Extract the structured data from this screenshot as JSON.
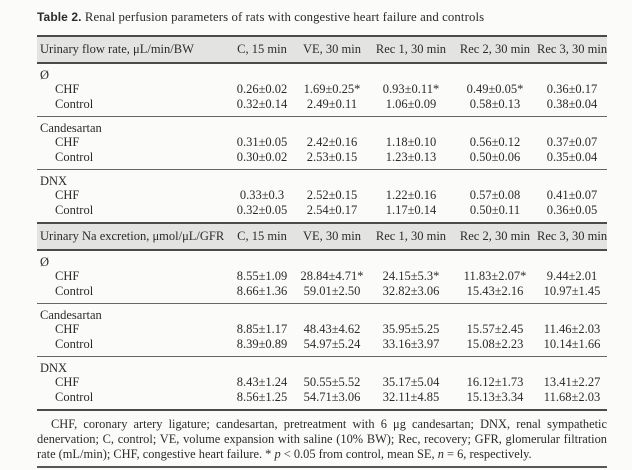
{
  "title": {
    "bold": "Table 2.",
    "rest": " Renal perfusion parameters of rats with congestive heart failure and controls"
  },
  "tables": [
    {
      "header": {
        "param": "Urinary flow rate, μL/min/BW",
        "cols": [
          "C, 15 min",
          "VE, 30 min",
          "Rec 1, 30 min",
          "Rec 2, 30 min",
          "Rec 3, 30 min"
        ]
      },
      "sections": [
        {
          "name": "Ø",
          "rows": [
            {
              "label": "CHF",
              "values": [
                "0.26±0.02",
                "1.69±0.25*",
                "0.93±0.11*",
                "0.49±0.05*",
                "0.36±0.17"
              ]
            },
            {
              "label": "Control",
              "values": [
                "0.32±0.14",
                "2.49±0.11",
                "1.06±0.09",
                "0.58±0.13",
                "0.38±0.04"
              ]
            }
          ]
        },
        {
          "name": "Candesartan",
          "rows": [
            {
              "label": "CHF",
              "values": [
                "0.31±0.05",
                "2.42±0.16",
                "1.18±0.10",
                "0.56±0.12",
                "0.37±0.07"
              ]
            },
            {
              "label": "Control",
              "values": [
                "0.30±0.02",
                "2.53±0.15",
                "1.23±0.13",
                "0.50±0.06",
                "0.35±0.04"
              ]
            }
          ]
        },
        {
          "name": "DNX",
          "rows": [
            {
              "label": "CHF",
              "values": [
                "0.33±0.3",
                "2.52±0.15",
                "1.22±0.16",
                "0.57±0.08",
                "0.41±0.07"
              ]
            },
            {
              "label": "Control",
              "values": [
                "0.32±0.05",
                "2.54±0.17",
                "1.17±0.14",
                "0.50±0.11",
                "0.36±0.05"
              ]
            }
          ]
        }
      ]
    },
    {
      "header": {
        "param": "Urinary Na excretion, μmol/μL/GFR",
        "cols": [
          "C, 15 min",
          "VE, 30 min",
          "Rec 1, 30 min",
          "Rec 2, 30 min",
          "Rec 3, 30 min"
        ]
      },
      "sections": [
        {
          "name": "Ø",
          "rows": [
            {
              "label": "CHF",
              "values": [
                "8.55±1.09",
                "28.84±4.71*",
                "24.15±5.3*",
                "11.83±2.07*",
                "9.44±2.01"
              ]
            },
            {
              "label": "Control",
              "values": [
                "8.66±1.36",
                "59.01±2.50",
                "32.82±3.06",
                "15.43±2.16",
                "10.97±1.45"
              ]
            }
          ]
        },
        {
          "name": "Candesartan",
          "rows": [
            {
              "label": "CHF",
              "values": [
                "8.85±1.17",
                "48.43±4.62",
                "35.95±5.25",
                "15.57±2.45",
                "11.46±2.03"
              ]
            },
            {
              "label": "Control",
              "values": [
                "8.39±0.89",
                "54.97±5.24",
                "33.16±3.97",
                "15.08±2.23",
                "10.14±1.66"
              ]
            }
          ]
        },
        {
          "name": "DNX",
          "rows": [
            {
              "label": "CHF",
              "values": [
                "8.43±1.24",
                "50.55±5.52",
                "35.17±5.04",
                "16.12±1.73",
                "13.41±2.27"
              ]
            },
            {
              "label": "Control",
              "values": [
                "8.56±1.25",
                "54.71±3.06",
                "32.11±4.85",
                "15.13±3.34",
                "11.68±2.03"
              ]
            }
          ]
        }
      ]
    }
  ],
  "footnote": {
    "part1": "CHF, coronary artery ligature; candesartan, pretreatment with 6 μg candesartan; DNX, renal sympathetic denervation; C, control; VE, volume expansion with saline (10% BW); Rec, recovery; GFR, glomerular filtration rate (mL/min); CHF, congestive heart failure. * ",
    "p_var": "p",
    "part2": " < 0.05 from control, mean SE, ",
    "n_var": "n",
    "part3": " = 6, respectively."
  },
  "colors": {
    "page_bg": "#fbfbfa",
    "band_bg": "#e3e3e2",
    "rule_dark": "#4b4b4b",
    "rule_thin": "#666666",
    "text": "#2b2b2b"
  }
}
